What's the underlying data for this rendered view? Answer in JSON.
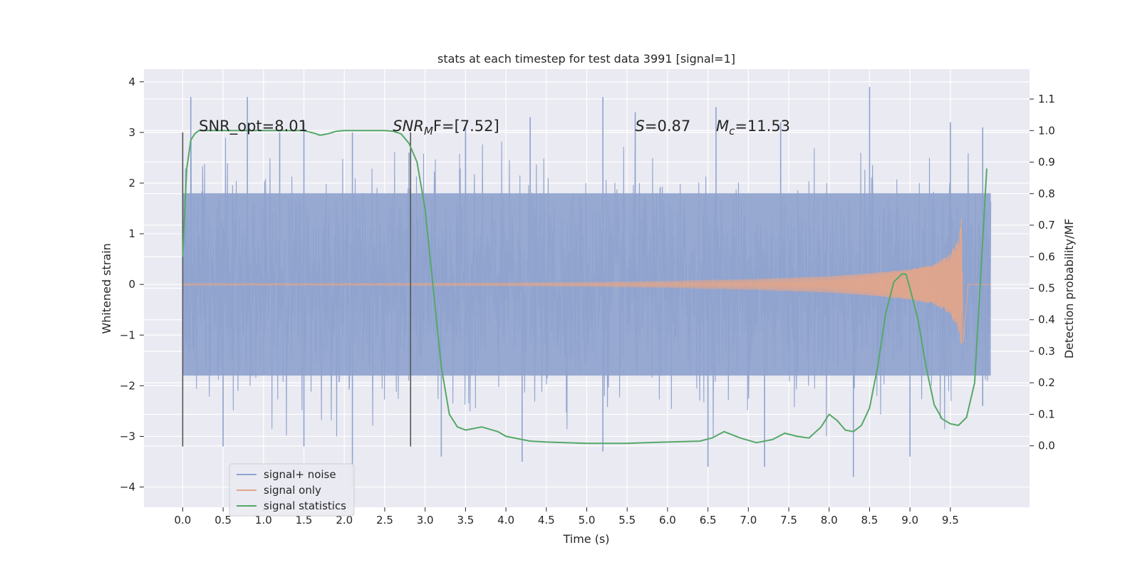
{
  "chart_data": {
    "type": "line",
    "title": "stats at each timestep for test data 3991 [signal=1]",
    "xlabel": "Time (s)",
    "ylabel_left": "Whitened strain",
    "ylabel_right": "Detection probability/MF",
    "xlim": [
      -0.48,
      10.48
    ],
    "ylim_left": [
      -4.4,
      4.25
    ],
    "ylim_right": [
      -0.195,
      1.195
    ],
    "x_ticks": [
      "0.0",
      "0.5",
      "1.0",
      "1.5",
      "2.0",
      "2.5",
      "3.0",
      "3.5",
      "4.0",
      "4.5",
      "5.0",
      "5.5",
      "6.0",
      "6.5",
      "7.0",
      "7.5",
      "8.0",
      "8.5",
      "9.0",
      "9.5"
    ],
    "y_ticks_left": [
      "−4",
      "−3",
      "−2",
      "−1",
      "0",
      "1",
      "2",
      "3",
      "4"
    ],
    "y_ticks_right": [
      "0.0",
      "0.1",
      "0.2",
      "0.3",
      "0.4",
      "0.5",
      "0.6",
      "0.7",
      "0.8",
      "0.9",
      "1.0",
      "1.1"
    ],
    "grid": true,
    "legend_position": "lower-left",
    "annotations": [
      {
        "key": "snr_opt",
        "label": "SNR_opt=8.01",
        "x": 0.2,
        "y": 3.0
      },
      {
        "key": "snr_mf",
        "label": "SNR",
        "sub": "M",
        "rest": "F=[7.52]",
        "x": 2.6,
        "y": 3.0
      },
      {
        "key": "s_val",
        "label": "S",
        "rest": "=0.87",
        "x": 5.6,
        "y": 3.0
      },
      {
        "key": "mc_val",
        "label": "M",
        "sub": "c",
        "rest": "=11.53",
        "x": 6.6,
        "y": 3.0
      }
    ],
    "vertical_markers": [
      {
        "x": 0.0,
        "y_range": [
          -3.2,
          3.0
        ]
      },
      {
        "x": 2.82,
        "y_range": [
          -3.2,
          3.0
        ]
      }
    ],
    "series": [
      {
        "name": "signal+ noise",
        "color": "#8fa3ce",
        "x_range": [
          0.0,
          10.0
        ],
        "band_upper": 1.8,
        "band_lower": -1.8,
        "peaks_upper": [
          [
            0.1,
            3.7
          ],
          [
            0.8,
            3.7
          ],
          [
            1.2,
            3.0
          ],
          [
            1.5,
            3.2
          ],
          [
            2.1,
            3.0
          ],
          [
            2.8,
            2.6
          ],
          [
            3.5,
            3.1
          ],
          [
            4.3,
            3.3
          ],
          [
            5.2,
            3.7
          ],
          [
            5.6,
            3.4
          ],
          [
            6.6,
            3.5
          ],
          [
            7.4,
            3.2
          ],
          [
            8.5,
            3.9
          ],
          [
            9.5,
            3.2
          ],
          [
            9.9,
            3.1
          ]
        ],
        "peaks_lower": [
          [
            0.5,
            -3.2
          ],
          [
            1.5,
            -3.2
          ],
          [
            2.1,
            -4.0
          ],
          [
            3.2,
            -3.4
          ],
          [
            4.2,
            -3.5
          ],
          [
            5.2,
            -3.3
          ],
          [
            6.5,
            -3.6
          ],
          [
            7.2,
            -3.6
          ],
          [
            8.3,
            -3.8
          ],
          [
            9.0,
            -3.4
          ],
          [
            9.9,
            -2.4
          ]
        ]
      },
      {
        "name": "signal only",
        "color": "#e3a58a",
        "x_range": [
          0.0,
          9.65
        ],
        "envelope": [
          [
            0.0,
            0.02
          ],
          [
            2.0,
            0.02
          ],
          [
            4.0,
            0.03
          ],
          [
            5.0,
            0.04
          ],
          [
            6.0,
            0.06
          ],
          [
            7.0,
            0.1
          ],
          [
            8.0,
            0.16
          ],
          [
            8.5,
            0.22
          ],
          [
            9.0,
            0.3
          ],
          [
            9.3,
            0.4
          ],
          [
            9.5,
            0.6
          ],
          [
            9.6,
            0.9
          ],
          [
            9.65,
            1.45
          ]
        ],
        "ringdown_end": 9.72
      },
      {
        "name": "signal statistics",
        "color": "#55a868",
        "axis": "right",
        "x": [
          0.0,
          0.05,
          0.1,
          0.15,
          0.2,
          0.3,
          0.5,
          0.8,
          1.0,
          1.3,
          1.5,
          1.65,
          1.7,
          1.8,
          1.9,
          2.0,
          2.2,
          2.5,
          2.6,
          2.7,
          2.8,
          2.9,
          3.0,
          3.1,
          3.2,
          3.3,
          3.4,
          3.5,
          3.7,
          3.9,
          4.0,
          4.3,
          4.5,
          5.0,
          5.5,
          6.0,
          6.4,
          6.55,
          6.7,
          6.9,
          7.1,
          7.3,
          7.45,
          7.6,
          7.75,
          7.9,
          8.0,
          8.1,
          8.2,
          8.3,
          8.4,
          8.5,
          8.6,
          8.7,
          8.8,
          8.9,
          8.95,
          9.0,
          9.1,
          9.2,
          9.3,
          9.4,
          9.5,
          9.6,
          9.7,
          9.8,
          9.9,
          9.95
        ],
        "y": [
          0.6,
          0.88,
          0.97,
          0.99,
          1.0,
          1.0,
          1.0,
          1.0,
          1.0,
          1.0,
          1.0,
          0.99,
          0.985,
          0.99,
          0.998,
          1.0,
          1.0,
          1.0,
          0.998,
          0.99,
          0.96,
          0.9,
          0.75,
          0.5,
          0.25,
          0.1,
          0.06,
          0.05,
          0.06,
          0.045,
          0.03,
          0.015,
          0.012,
          0.008,
          0.008,
          0.012,
          0.015,
          0.025,
          0.045,
          0.025,
          0.01,
          0.02,
          0.04,
          0.03,
          0.025,
          0.06,
          0.1,
          0.08,
          0.05,
          0.045,
          0.065,
          0.12,
          0.25,
          0.42,
          0.52,
          0.545,
          0.545,
          0.5,
          0.4,
          0.25,
          0.13,
          0.085,
          0.07,
          0.065,
          0.09,
          0.2,
          0.65,
          0.88
        ]
      }
    ]
  }
}
